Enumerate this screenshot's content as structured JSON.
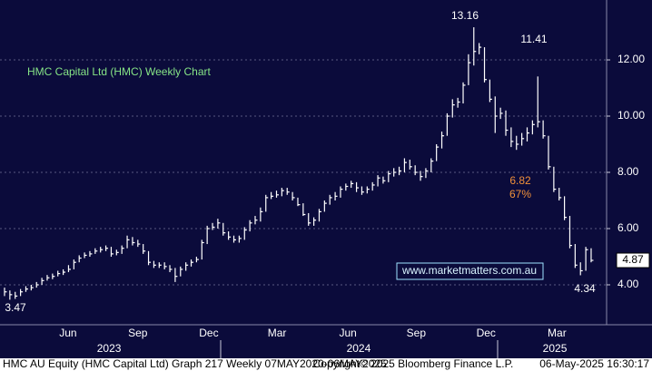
{
  "chart_data": {
    "type": "hlc",
    "title": "HMC Capital Ltd (HMC) Weekly Chart",
    "watermark": "www.marketmatters.com.au",
    "color": "#ffffff",
    "close": [
      3.75,
      3.65,
      3.6,
      3.75,
      3.85,
      3.9,
      4.0,
      4.15,
      4.25,
      4.3,
      4.4,
      4.45,
      4.55,
      4.8,
      4.95,
      5.05,
      5.1,
      5.2,
      5.25,
      5.3,
      5.1,
      5.15,
      5.3,
      5.6,
      5.5,
      5.45,
      5.2,
      4.8,
      4.7,
      4.7,
      4.65,
      4.55,
      4.3,
      4.55,
      4.7,
      4.8,
      4.9,
      5.5,
      6.0,
      6.05,
      6.2,
      5.85,
      5.7,
      5.6,
      5.65,
      5.95,
      6.2,
      6.3,
      6.6,
      7.1,
      7.15,
      7.2,
      7.35,
      7.3,
      7.1,
      6.85,
      6.5,
      6.2,
      6.3,
      6.6,
      6.9,
      7.1,
      7.15,
      7.4,
      7.5,
      7.6,
      7.45,
      7.3,
      7.4,
      7.55,
      7.8,
      7.7,
      7.95,
      8.0,
      8.05,
      8.35,
      8.2,
      8.0,
      7.85,
      8.05,
      8.4,
      8.9,
      9.3,
      10.0,
      10.4,
      10.5,
      11.1,
      11.9,
      12.3,
      12.45,
      11.3,
      10.6,
      10.0,
      10.1,
      9.5,
      9.1,
      9.0,
      9.2,
      9.4,
      9.7,
      9.8,
      9.3,
      8.2,
      7.4,
      7.1,
      6.4,
      5.4,
      4.7,
      4.5,
      5.25,
      4.87
    ],
    "high": [
      3.9,
      3.8,
      3.75,
      3.85,
      3.95,
      4.0,
      4.1,
      4.25,
      4.35,
      4.4,
      4.5,
      4.55,
      4.7,
      4.9,
      5.05,
      5.15,
      5.2,
      5.3,
      5.35,
      5.4,
      5.35,
      5.25,
      5.4,
      5.75,
      5.7,
      5.6,
      5.45,
      5.2,
      4.85,
      4.8,
      4.8,
      4.7,
      4.6,
      4.65,
      4.8,
      4.9,
      5.0,
      5.6,
      6.1,
      6.2,
      6.35,
      6.2,
      5.9,
      5.75,
      5.75,
      6.05,
      6.3,
      6.45,
      6.75,
      7.2,
      7.3,
      7.35,
      7.45,
      7.45,
      7.3,
      7.1,
      6.9,
      6.55,
      6.4,
      6.7,
      7.0,
      7.2,
      7.3,
      7.5,
      7.6,
      7.7,
      7.65,
      7.5,
      7.5,
      7.65,
      7.9,
      7.85,
      8.05,
      8.15,
      8.2,
      8.5,
      8.45,
      8.25,
      8.05,
      8.15,
      8.5,
      9.0,
      9.45,
      10.1,
      10.6,
      10.65,
      11.2,
      12.2,
      13.16,
      12.6,
      12.45,
      11.3,
      10.7,
      10.3,
      10.2,
      9.6,
      9.3,
      9.4,
      9.6,
      9.85,
      11.41,
      9.85,
      9.3,
      8.2,
      7.45,
      7.15,
      6.45,
      5.45,
      4.8,
      5.35,
      5.3
    ],
    "low": [
      3.6,
      3.47,
      3.5,
      3.6,
      3.75,
      3.8,
      3.9,
      4.0,
      4.15,
      4.2,
      4.3,
      4.35,
      4.45,
      4.55,
      4.8,
      4.95,
      5.0,
      5.1,
      5.15,
      5.2,
      5.0,
      5.05,
      5.1,
      5.3,
      5.4,
      5.35,
      5.1,
      4.7,
      4.6,
      4.6,
      4.55,
      4.45,
      4.1,
      4.3,
      4.5,
      4.65,
      4.8,
      4.9,
      5.45,
      5.95,
      6.0,
      5.75,
      5.6,
      5.5,
      5.5,
      5.6,
      5.9,
      6.15,
      6.25,
      6.6,
      7.05,
      7.1,
      7.15,
      7.2,
      7.0,
      6.8,
      6.45,
      6.1,
      6.1,
      6.25,
      6.6,
      6.85,
      7.0,
      7.1,
      7.35,
      7.45,
      7.3,
      7.2,
      7.25,
      7.35,
      7.5,
      7.6,
      7.65,
      7.85,
      7.9,
      8.0,
      8.1,
      7.9,
      7.7,
      7.8,
      8.0,
      8.4,
      8.85,
      9.3,
      9.95,
      10.3,
      10.45,
      11.1,
      11.8,
      12.2,
      11.2,
      10.5,
      9.4,
      9.9,
      9.3,
      8.9,
      8.8,
      8.95,
      9.1,
      9.35,
      9.6,
      9.2,
      8.1,
      7.3,
      7.0,
      6.3,
      5.3,
      4.6,
      4.34,
      4.5,
      4.8
    ],
    "xlim": [
      -0.85,
      112.9
    ],
    "xticks": [
      {
        "value": 11.9,
        "label": "Jun"
      },
      {
        "value": 25,
        "label": "Sep"
      },
      {
        "value": 38.3,
        "label": "Dec"
      },
      {
        "value": 51.1,
        "label": "Mar"
      },
      {
        "value": 64.4,
        "label": "Jun"
      },
      {
        "value": 77.2,
        "label": "Sep"
      },
      {
        "value": 90.3,
        "label": "Dec"
      },
      {
        "value": 103.6,
        "label": "Mar"
      }
    ],
    "year_ticks": [
      {
        "value": 19.6,
        "label": "2023"
      },
      {
        "value": 66.4,
        "label": "2024"
      },
      {
        "value": 103.2,
        "label": "2025"
      }
    ],
    "ylim": [
      2.58,
      14.13
    ],
    "yticks": [
      {
        "value": 4,
        "label": "4.00"
      },
      {
        "value": 6,
        "label": "6.00"
      },
      {
        "value": 8,
        "label": "8.00"
      },
      {
        "value": 10,
        "label": "10.00"
      },
      {
        "value": 12,
        "label": "12.00"
      }
    ],
    "grid": true,
    "last_price": 4.87,
    "annotations": [
      13.16,
      11.41,
      3.47,
      4.34,
      6.82,
      {
        "value": 67,
        "label": "67%"
      }
    ]
  },
  "footer": {
    "left": "HMC AU Equity (HMC Capital Ltd) Graph 217  Weekly 07MAY2020-06MAY2025",
    "center": "Copyright© 2025 Bloomberg Finance L.P.",
    "right": "06-May-2025 16:30:17"
  }
}
